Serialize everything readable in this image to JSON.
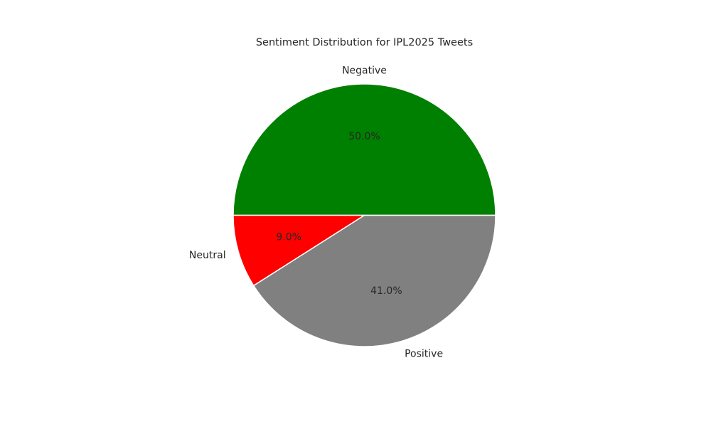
{
  "chart_data": {
    "type": "pie",
    "title": "Sentiment Distribution for IPL2025 Tweets",
    "slices": [
      {
        "label": "Negative",
        "value": 50.0,
        "pct_text": "50.0%",
        "color": "#008000"
      },
      {
        "label": "Neutral",
        "value": 9.0,
        "pct_text": "9.0%",
        "color": "#ff0000"
      },
      {
        "label": "Positive",
        "value": 41.0,
        "pct_text": "41.0%",
        "color": "#808080"
      }
    ],
    "start_angle_deg": 0,
    "direction": "counterclockwise",
    "slice_edge_color": "#ffffff",
    "legend": "none"
  }
}
